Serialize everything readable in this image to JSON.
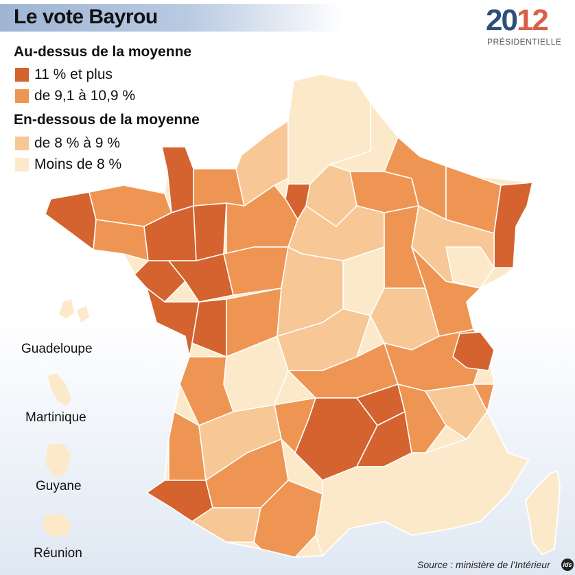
{
  "title": "Le vote Bayrou",
  "logo": {
    "year_part1": "20",
    "year_part2": "12",
    "subtitle": "PRÉSIDENTIELLE"
  },
  "legend": {
    "above_heading": "Au-dessus de la moyenne",
    "below_heading": "En-dessous de la moyenne",
    "items": [
      {
        "label": "11 % et plus",
        "color": "#d4632f"
      },
      {
        "label": "de 9,1 à 10,9 %",
        "color": "#ef9553"
      },
      {
        "label": "de 8 % à 9 %",
        "color": "#f7c796"
      },
      {
        "label": "Moins de 8 %",
        "color": "#fce9c9"
      }
    ]
  },
  "overseas": [
    "Guadeloupe",
    "Martinique",
    "Guyane",
    "Réunion"
  ],
  "source": "Source : ministère de l’Intérieur",
  "brand_icon": "ids"
}
